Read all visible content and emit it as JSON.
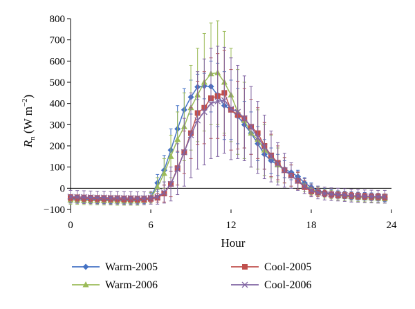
{
  "chart_data": {
    "type": "line",
    "xlabel": "Hour",
    "ylabel_main": "R",
    "ylabel_sub": "n",
    "ylabel_unit_open": " (W m",
    "ylabel_unit_sup": "−2",
    "ylabel_unit_close": ")",
    "xlim": [
      0,
      24
    ],
    "ylim": [
      -100,
      800
    ],
    "xticks": [
      "0",
      "6",
      "12",
      "18",
      "24"
    ],
    "yticks": [
      "−100",
      "0",
      "100",
      "200",
      "300",
      "400",
      "500",
      "600",
      "700",
      "800"
    ],
    "legend_position": "bottom",
    "grid": false,
    "x": [
      0,
      0.5,
      1,
      1.5,
      2,
      2.5,
      3,
      3.5,
      4,
      4.5,
      5,
      5.5,
      6,
      6.5,
      7,
      7.5,
      8,
      8.5,
      9,
      9.5,
      10,
      10.5,
      11,
      11.5,
      12,
      12.5,
      13,
      13.5,
      14,
      14.5,
      15,
      15.5,
      16,
      16.5,
      17,
      17.5,
      18,
      18.5,
      19,
      19.5,
      20,
      20.5,
      21,
      21.5,
      22,
      22.5,
      23,
      23.5
    ],
    "series": [
      {
        "name": "Warm-2005",
        "color": "#4472C4",
        "marker": "diamond",
        "values": [
          -50,
          -50,
          -51,
          -52,
          -53,
          -53,
          -54,
          -54,
          -55,
          -55,
          -55,
          -54,
          -45,
          25,
          85,
          180,
          280,
          370,
          430,
          478,
          482,
          480,
          440,
          390,
          370,
          340,
          300,
          260,
          210,
          160,
          130,
          110,
          90,
          75,
          55,
          25,
          5,
          -10,
          -20,
          -25,
          -30,
          -32,
          -35,
          -37,
          -38,
          -40,
          -42,
          -45
        ],
        "errors": [
          18,
          18,
          18,
          18,
          18,
          18,
          18,
          18,
          18,
          18,
          18,
          18,
          20,
          40,
          70,
          100,
          110,
          100,
          80,
          60,
          60,
          120,
          150,
          160,
          140,
          130,
          110,
          100,
          80,
          70,
          60,
          50,
          40,
          35,
          30,
          25,
          20,
          20,
          18,
          18,
          18,
          18,
          18,
          18,
          18,
          18,
          18,
          18
        ]
      },
      {
        "name": "Cool-2005",
        "color": "#C0504D",
        "marker": "square",
        "values": [
          -45,
          -46,
          -47,
          -48,
          -49,
          -49,
          -50,
          -50,
          -51,
          -51,
          -52,
          -52,
          -50,
          -45,
          -25,
          20,
          95,
          170,
          260,
          355,
          380,
          425,
          435,
          450,
          370,
          345,
          330,
          290,
          260,
          200,
          155,
          120,
          85,
          60,
          35,
          5,
          -15,
          -20,
          -25,
          -30,
          -32,
          -33,
          -35,
          -37,
          -38,
          -40,
          -40,
          -42
        ],
        "errors": [
          15,
          15,
          15,
          15,
          15,
          15,
          15,
          15,
          15,
          15,
          15,
          15,
          15,
          20,
          40,
          60,
          80,
          100,
          120,
          150,
          170,
          190,
          200,
          200,
          190,
          160,
          140,
          130,
          120,
          110,
          100,
          80,
          60,
          50,
          40,
          30,
          20,
          20,
          15,
          15,
          15,
          15,
          15,
          15,
          15,
          15,
          15,
          15
        ]
      },
      {
        "name": "Warm-2006",
        "color": "#9BBB59",
        "marker": "triangle",
        "values": [
          -55,
          -56,
          -57,
          -58,
          -58,
          -59,
          -59,
          -60,
          -60,
          -60,
          -60,
          -58,
          -45,
          5,
          70,
          150,
          230,
          290,
          380,
          440,
          500,
          540,
          545,
          500,
          440,
          360,
          320,
          260,
          230,
          180,
          150,
          110,
          85,
          60,
          35,
          15,
          -5,
          -15,
          -25,
          -30,
          -35,
          -38,
          -40,
          -42,
          -44,
          -45,
          -47,
          -50
        ],
        "errors": [
          20,
          20,
          20,
          20,
          20,
          20,
          20,
          20,
          20,
          20,
          20,
          20,
          25,
          45,
          70,
          100,
          130,
          160,
          200,
          220,
          230,
          240,
          245,
          240,
          220,
          200,
          180,
          160,
          140,
          120,
          100,
          80,
          60,
          50,
          40,
          30,
          25,
          20,
          20,
          20,
          20,
          20,
          20,
          20,
          20,
          20,
          20,
          20
        ]
      },
      {
        "name": "Cool-2006",
        "color": "#8064A2",
        "marker": "x",
        "values": [
          -40,
          -41,
          -42,
          -43,
          -44,
          -44,
          -45,
          -45,
          -46,
          -46,
          -47,
          -47,
          -45,
          -40,
          -20,
          20,
          90,
          170,
          250,
          320,
          360,
          400,
          410,
          415,
          375,
          360,
          330,
          290,
          240,
          195,
          150,
          115,
          85,
          60,
          35,
          10,
          -10,
          -20,
          -25,
          -28,
          -30,
          -32,
          -35,
          -36,
          -38,
          -39,
          -40,
          -40
        ],
        "errors": [
          30,
          30,
          30,
          30,
          30,
          30,
          30,
          30,
          30,
          30,
          30,
          30,
          30,
          35,
          50,
          80,
          120,
          160,
          200,
          230,
          250,
          260,
          260,
          250,
          240,
          220,
          200,
          190,
          170,
          150,
          120,
          100,
          80,
          60,
          45,
          35,
          30,
          30,
          30,
          30,
          30,
          30,
          30,
          30,
          30,
          30,
          30,
          30
        ]
      }
    ]
  }
}
